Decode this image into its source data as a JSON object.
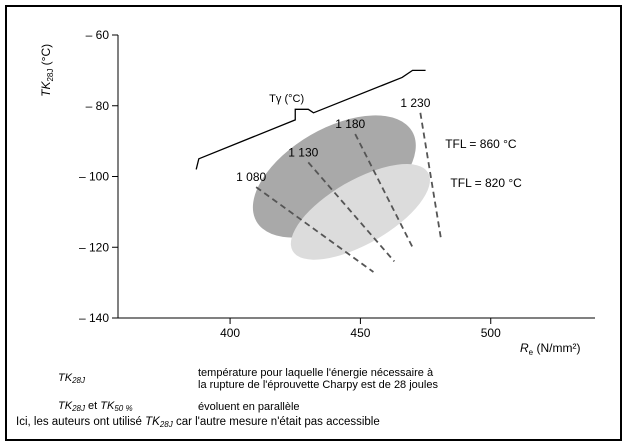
{
  "chart_data": {
    "type": "line",
    "title": "",
    "xlabel": {
      "symbol": "R",
      "sub": "e",
      "unit": "(N/mm²)"
    },
    "ylabel": {
      "symbol": "TK",
      "sub": "28J",
      "unit": "(°C)"
    },
    "xlim": [
      357,
      540
    ],
    "ylim": [
      -140,
      -60
    ],
    "x_ticks": [
      400,
      450,
      500
    ],
    "y_ticks": [
      -60,
      -80,
      -100,
      -120,
      -140
    ],
    "x_tick_labels": [
      "400",
      "450",
      "500"
    ],
    "y_tick_labels": [
      "– 60",
      "– 80",
      "– 100",
      "– 120",
      "– 140"
    ],
    "grid": false,
    "series": [
      {
        "name": "Tγ (°C)",
        "points": [
          [
            387,
            -98
          ],
          [
            388,
            -95
          ],
          [
            425,
            -84
          ],
          [
            425,
            -81
          ],
          [
            430,
            -81
          ],
          [
            432,
            -82
          ],
          [
            466,
            -72
          ],
          [
            470,
            -70
          ],
          [
            475,
            -70
          ]
        ]
      }
    ],
    "regions": [
      {
        "label": "TFL = 860 °C",
        "center": [
          440,
          -100
        ],
        "x_extent": [
          412,
          481
        ],
        "y_extent": [
          -113,
          -86
        ],
        "color": "#a9a9a9"
      },
      {
        "label": "TFL = 820 °C",
        "center": [
          450,
          -110
        ],
        "x_extent": [
          423,
          483
        ],
        "y_extent": [
          -120,
          -102
        ],
        "color": "#dcdcdc"
      }
    ],
    "dashed_lines": [
      {
        "label": "1 080",
        "from": [
          410,
          -103
        ],
        "to": [
          455,
          -127
        ]
      },
      {
        "label": "1 130",
        "from": [
          430,
          -96
        ],
        "to": [
          463,
          -124
        ]
      },
      {
        "label": "1 180",
        "from": [
          448,
          -88
        ],
        "to": [
          470,
          -120
        ]
      },
      {
        "label": "1 230",
        "from": [
          473,
          -82
        ],
        "to": [
          481,
          -118
        ]
      }
    ],
    "annotations": [
      {
        "text": "Tγ (°C)",
        "anchor": [
          415,
          -79
        ]
      }
    ]
  },
  "legend": [
    {
      "term": "TK",
      "term_sub": "28J",
      "definition_line1": "température pour laquelle l'énergie nécessaire à",
      "definition_line2": "la rupture de l'éprouvette Charpy est de 28 joules"
    },
    {
      "term_a": "TK",
      "term_a_sub": "28J",
      "joiner": "et",
      "term_b": "TK",
      "term_b_sub": "50 %",
      "definition": "évoluent en parallèle"
    }
  ],
  "note": {
    "before": "Ici, les auteurs ont utilisé",
    "term": "TK",
    "term_sub": "28J",
    "after": "car l'autre mesure n'était pas accessible"
  }
}
